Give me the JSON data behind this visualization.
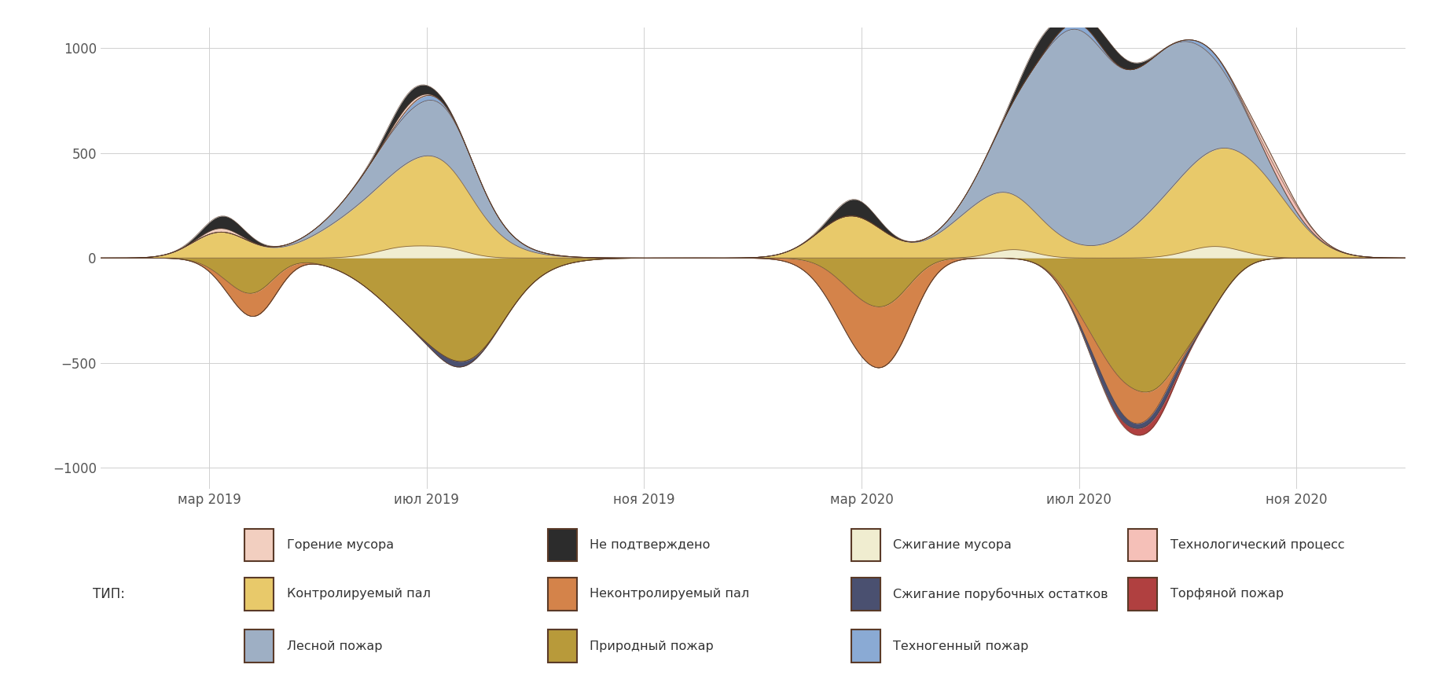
{
  "title": "",
  "ylim": [
    -1100,
    1100
  ],
  "yticks": [
    -1000,
    -500,
    0,
    500,
    1000
  ],
  "xtick_labels": [
    "мар 2019",
    "июл 2019",
    "ноя 2019",
    "мар 2020",
    "июл 2020",
    "ноя 2020"
  ],
  "xtick_positions": [
    2,
    6,
    10,
    14,
    18,
    22
  ],
  "n_points": 400,
  "background_color": "#ffffff",
  "grid_color": "#d0d0d0",
  "legend_label_typ": "ТИП:",
  "series": [
    {
      "name": "Горение мусора",
      "color": "#f2cfc0",
      "edge": "#5a3a28"
    },
    {
      "name": "Контролируемый пал",
      "color": "#e8c96a",
      "edge": "#5a3a28"
    },
    {
      "name": "Лесной пожар",
      "color": "#9eafc4",
      "edge": "#5a3a28"
    },
    {
      "name": "Не подтверждено",
      "color": "#2c2c2c",
      "edge": "#5a3a28"
    },
    {
      "name": "Неконтролируемый пал",
      "color": "#d4834a",
      "edge": "#5a3a28"
    },
    {
      "name": "Природный пожар",
      "color": "#b89a3a",
      "edge": "#5a3a28"
    },
    {
      "name": "Сжигание мусора",
      "color": "#f0edd0",
      "edge": "#5a3a28"
    },
    {
      "name": "Сжигание порубочных остатков",
      "color": "#4a5070",
      "edge": "#5a3a28"
    },
    {
      "name": "Техногенный пожар",
      "color": "#8aaad4",
      "edge": "#5a3a28"
    },
    {
      "name": "Технологический процесс",
      "color": "#f5c0b8",
      "edge": "#5a3a28"
    },
    {
      "name": "Торфяной пожар",
      "color": "#b04040",
      "edge": "#5a3a28"
    }
  ],
  "pos_order": [
    "Сжигание мусора",
    "Контролируемый пал",
    "Лесной пожар",
    "Техногенный пожар",
    "Технологический процесс",
    "Горение мусора",
    "Не подтверждено"
  ],
  "neg_order": [
    "Природный пожар",
    "Неконтролируемый пал",
    "Сжигание порубочных остатков",
    "Торфяной пожар"
  ]
}
